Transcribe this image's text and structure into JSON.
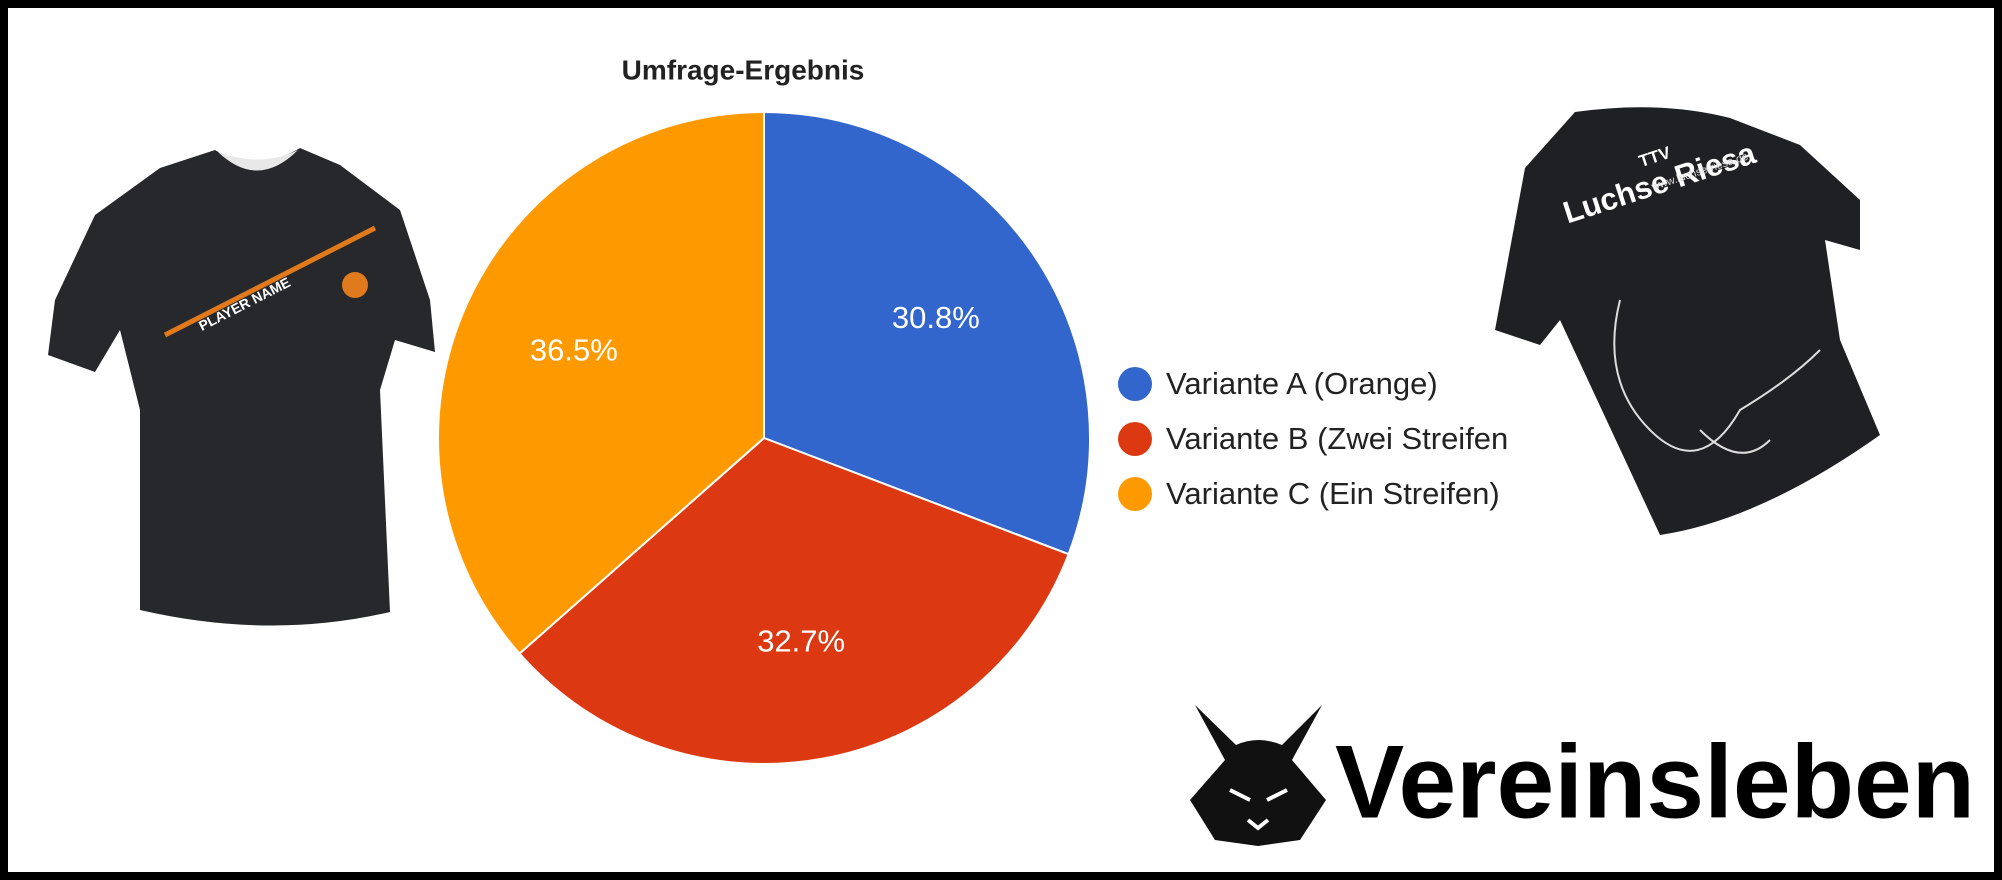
{
  "chart_data": {
    "type": "pie",
    "title": "Umfrage-Ergebnis",
    "categories": [
      "Variante A (Orange)",
      "Variante B (Zwei Streifen",
      "Variante C (Ein Streifen)"
    ],
    "values": [
      30.8,
      32.7,
      36.5
    ],
    "value_labels": [
      "30.8%",
      "32.7%",
      "36.5%"
    ],
    "colors": [
      "#3366cc",
      "#dc3912",
      "#ff9900"
    ],
    "legend": "right"
  },
  "branding": {
    "logo_text": "Vereinsleben"
  },
  "shirts": {
    "left_print": "PLAYER NAME",
    "right_club": "TTV",
    "right_name": "Luchse Riesa",
    "right_url": "www.luchse-riesa.de"
  }
}
